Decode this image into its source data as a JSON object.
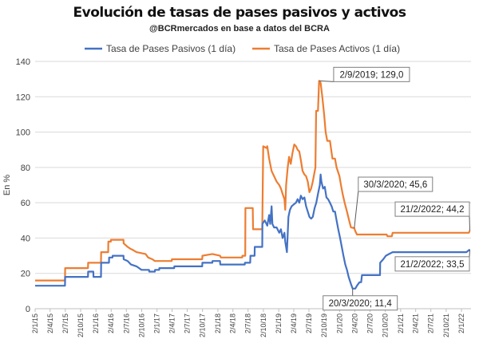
{
  "chart_data": {
    "type": "line",
    "title": "Evolución de tasas de pases pasivos y activos",
    "subtitle": "@BCRmercados en base a datos del BCRA",
    "ylabel": "En %",
    "xlabel": "",
    "ylim": [
      0,
      140
    ],
    "yticks": [
      0,
      20,
      40,
      60,
      80,
      100,
      120,
      140
    ],
    "legend_position": "top",
    "grid": true,
    "x_tick_labels": [
      "2/1/15",
      "2/4/15",
      "2/7/15",
      "2/10/15",
      "2/1/16",
      "2/4/16",
      "2/7/16",
      "2/10/16",
      "2/1/17",
      "2/4/17",
      "2/7/17",
      "2/10/17",
      "2/1/18",
      "2/4/18",
      "2/7/18",
      "2/10/18",
      "2/1/19",
      "2/4/19",
      "2/7/19",
      "2/10/19",
      "2/1/20",
      "2/4/20",
      "2/7/20",
      "2/10/20",
      "2/1/21",
      "2/4/21",
      "2/7/21",
      "2/10/21",
      "2/1/22"
    ],
    "series": [
      {
        "name": "Tasa de Pases Pasivos (1 día)",
        "color": "#4472C4",
        "points": [
          [
            "2015-01-02",
            13
          ],
          [
            "2015-06-30",
            13
          ],
          [
            "2015-07-01",
            18
          ],
          [
            "2015-11-15",
            18
          ],
          [
            "2015-11-16",
            21
          ],
          [
            "2015-12-17",
            21
          ],
          [
            "2015-12-18",
            18
          ],
          [
            "2016-02-01",
            18
          ],
          [
            "2016-02-02",
            26
          ],
          [
            "2016-03-20",
            26
          ],
          [
            "2016-03-21",
            29
          ],
          [
            "2016-04-10",
            29
          ],
          [
            "2016-04-11",
            30
          ],
          [
            "2016-06-15",
            30
          ],
          [
            "2016-06-16",
            28
          ],
          [
            "2016-07-10",
            27
          ],
          [
            "2016-07-30",
            25
          ],
          [
            "2016-09-01",
            24
          ],
          [
            "2016-10-01",
            22
          ],
          [
            "2016-11-15",
            22
          ],
          [
            "2016-11-16",
            21
          ],
          [
            "2016-12-20",
            21
          ],
          [
            "2016-12-21",
            22
          ],
          [
            "2017-01-15",
            22
          ],
          [
            "2017-01-16",
            23
          ],
          [
            "2017-04-15",
            23
          ],
          [
            "2017-04-16",
            24
          ],
          [
            "2017-09-30",
            24
          ],
          [
            "2017-10-01",
            26
          ],
          [
            "2017-11-30",
            26
          ],
          [
            "2017-12-01",
            27
          ],
          [
            "2018-01-15",
            27
          ],
          [
            "2018-01-16",
            25
          ],
          [
            "2018-06-12",
            25
          ],
          [
            "2018-06-13",
            26
          ],
          [
            "2018-07-15",
            26
          ],
          [
            "2018-07-16",
            30
          ],
          [
            "2018-08-10",
            30
          ],
          [
            "2018-08-11",
            35
          ],
          [
            "2018-09-25",
            35
          ],
          [
            "2018-09-26",
            48
          ],
          [
            "2018-10-10",
            50
          ],
          [
            "2018-10-25",
            47
          ],
          [
            "2018-11-05",
            53
          ],
          [
            "2018-11-12",
            48
          ],
          [
            "2018-11-20",
            58
          ],
          [
            "2018-11-25",
            48
          ],
          [
            "2018-12-05",
            46
          ],
          [
            "2018-12-20",
            46
          ],
          [
            "2019-01-05",
            43
          ],
          [
            "2019-01-15",
            45
          ],
          [
            "2019-01-25",
            40
          ],
          [
            "2019-02-05",
            43
          ],
          [
            "2019-02-10",
            38
          ],
          [
            "2019-02-20",
            32
          ],
          [
            "2019-03-01",
            52
          ],
          [
            "2019-03-10",
            56
          ],
          [
            "2019-03-20",
            58
          ],
          [
            "2019-04-01",
            59
          ],
          [
            "2019-04-15",
            60
          ],
          [
            "2019-04-25",
            62
          ],
          [
            "2019-05-05",
            60
          ],
          [
            "2019-05-15",
            64
          ],
          [
            "2019-05-25",
            62
          ],
          [
            "2019-06-05",
            63
          ],
          [
            "2019-06-15",
            58
          ],
          [
            "2019-06-25",
            55
          ],
          [
            "2019-07-05",
            52
          ],
          [
            "2019-07-15",
            51
          ],
          [
            "2019-07-25",
            52
          ],
          [
            "2019-08-05",
            57
          ],
          [
            "2019-08-15",
            60
          ],
          [
            "2019-08-25",
            65
          ],
          [
            "2019-09-05",
            70
          ],
          [
            "2019-09-10",
            76
          ],
          [
            "2019-09-15",
            72
          ],
          [
            "2019-09-25",
            68
          ],
          [
            "2019-10-05",
            69
          ],
          [
            "2019-10-15",
            63
          ],
          [
            "2019-10-25",
            62
          ],
          [
            "2019-11-05",
            60
          ],
          [
            "2019-11-15",
            58
          ],
          [
            "2019-11-25",
            55
          ],
          [
            "2019-12-05",
            55
          ],
          [
            "2019-12-15",
            50
          ],
          [
            "2019-12-25",
            45
          ],
          [
            "2020-01-05",
            40
          ],
          [
            "2020-01-15",
            35
          ],
          [
            "2020-01-25",
            30
          ],
          [
            "2020-02-05",
            25
          ],
          [
            "2020-02-15",
            22
          ],
          [
            "2020-02-25",
            18
          ],
          [
            "2020-03-10",
            14
          ],
          [
            "2020-03-20",
            11.4
          ],
          [
            "2020-04-05",
            11.4
          ],
          [
            "2020-04-15",
            13
          ],
          [
            "2020-04-30",
            15
          ],
          [
            "2020-05-10",
            15
          ],
          [
            "2020-05-15",
            19
          ],
          [
            "2020-08-31",
            19
          ],
          [
            "2020-09-01",
            26
          ],
          [
            "2020-09-20",
            28
          ],
          [
            "2020-10-05",
            30
          ],
          [
            "2020-10-25",
            31
          ],
          [
            "2020-11-15",
            32
          ],
          [
            "2022-01-31",
            32
          ],
          [
            "2022-02-21",
            33.5
          ]
        ]
      },
      {
        "name": "Tasa de Pases Activos (1 día)",
        "color": "#ED7D31",
        "points": [
          [
            "2015-01-02",
            16
          ],
          [
            "2015-06-30",
            16
          ],
          [
            "2015-07-01",
            23
          ],
          [
            "2015-11-15",
            23
          ],
          [
            "2015-11-16",
            26
          ],
          [
            "2016-02-01",
            26
          ],
          [
            "2016-02-02",
            32
          ],
          [
            "2016-03-15",
            32
          ],
          [
            "2016-03-16",
            38
          ],
          [
            "2016-03-31",
            38
          ],
          [
            "2016-04-01",
            39
          ],
          [
            "2016-06-15",
            39
          ],
          [
            "2016-06-16",
            37
          ],
          [
            "2016-07-10",
            35
          ],
          [
            "2016-07-25",
            34
          ],
          [
            "2016-08-15",
            33
          ],
          [
            "2016-09-01",
            32
          ],
          [
            "2016-10-25",
            31
          ],
          [
            "2016-11-10",
            29
          ],
          [
            "2016-12-05",
            28
          ],
          [
            "2016-12-20",
            27
          ],
          [
            "2017-03-31",
            27
          ],
          [
            "2017-04-01",
            28
          ],
          [
            "2017-09-30",
            28
          ],
          [
            "2017-10-01",
            30
          ],
          [
            "2017-11-30",
            31
          ],
          [
            "2018-01-15",
            30
          ],
          [
            "2018-01-20",
            29
          ],
          [
            "2018-05-28",
            29
          ],
          [
            "2018-05-29",
            30
          ],
          [
            "2018-06-15",
            30
          ],
          [
            "2018-06-16",
            57
          ],
          [
            "2018-07-30",
            57
          ],
          [
            "2018-08-01",
            45
          ],
          [
            "2018-09-25",
            45
          ],
          [
            "2018-10-01",
            92
          ],
          [
            "2018-10-20",
            91
          ],
          [
            "2018-10-25",
            92
          ],
          [
            "2018-11-05",
            85
          ],
          [
            "2018-11-20",
            78
          ],
          [
            "2018-12-05",
            75
          ],
          [
            "2018-12-20",
            72
          ],
          [
            "2019-01-05",
            70
          ],
          [
            "2019-01-15",
            68
          ],
          [
            "2019-01-25",
            65
          ],
          [
            "2019-02-05",
            62
          ],
          [
            "2019-02-10",
            56
          ],
          [
            "2019-02-15",
            70
          ],
          [
            "2019-02-25",
            80
          ],
          [
            "2019-03-05",
            86
          ],
          [
            "2019-03-15",
            82
          ],
          [
            "2019-03-25",
            88
          ],
          [
            "2019-04-05",
            93
          ],
          [
            "2019-04-15",
            92
          ],
          [
            "2019-04-25",
            90
          ],
          [
            "2019-05-05",
            89
          ],
          [
            "2019-05-15",
            84
          ],
          [
            "2019-05-25",
            78
          ],
          [
            "2019-06-05",
            76
          ],
          [
            "2019-06-15",
            75
          ],
          [
            "2019-06-25",
            72
          ],
          [
            "2019-07-05",
            66
          ],
          [
            "2019-07-15",
            68
          ],
          [
            "2019-07-25",
            72
          ],
          [
            "2019-08-10",
            80
          ],
          [
            "2019-08-14",
            112
          ],
          [
            "2019-08-25",
            112
          ],
          [
            "2019-09-01",
            129
          ],
          [
            "2019-09-10",
            128
          ],
          [
            "2019-09-20",
            120
          ],
          [
            "2019-10-01",
            110
          ],
          [
            "2019-10-10",
            100
          ],
          [
            "2019-10-20",
            95
          ],
          [
            "2019-11-05",
            95
          ],
          [
            "2019-11-20",
            85
          ],
          [
            "2019-12-05",
            85
          ],
          [
            "2019-12-15",
            80
          ],
          [
            "2020-01-01",
            75
          ],
          [
            "2020-01-10",
            70
          ],
          [
            "2020-01-20",
            65
          ],
          [
            "2020-02-01",
            60
          ],
          [
            "2020-02-15",
            55
          ],
          [
            "2020-02-28",
            50
          ],
          [
            "2020-03-10",
            46
          ],
          [
            "2020-03-30",
            45.6
          ],
          [
            "2020-04-05",
            44
          ],
          [
            "2020-04-15",
            42
          ],
          [
            "2020-10-10",
            42
          ],
          [
            "2020-10-15",
            41
          ],
          [
            "2020-11-10",
            41
          ],
          [
            "2020-11-15",
            43
          ],
          [
            "2022-02-15",
            43
          ],
          [
            "2022-02-21",
            44.2
          ]
        ]
      }
    ],
    "annotations": [
      {
        "text": "2/9/2019; 129,0",
        "x": "2019-09-02",
        "y": 129
      },
      {
        "text": "30/3/2020; 45,6",
        "x": "2020-03-30",
        "y": 45.6
      },
      {
        "text": "21/2/2022; 44,2",
        "x": "2022-02-21",
        "y": 44.2
      },
      {
        "text": "20/3/2020; 11,4",
        "x": "2020-03-20",
        "y": 11.4
      },
      {
        "text": "21/2/2022; 33,5",
        "x": "2022-02-21",
        "y": 33.5
      }
    ]
  }
}
